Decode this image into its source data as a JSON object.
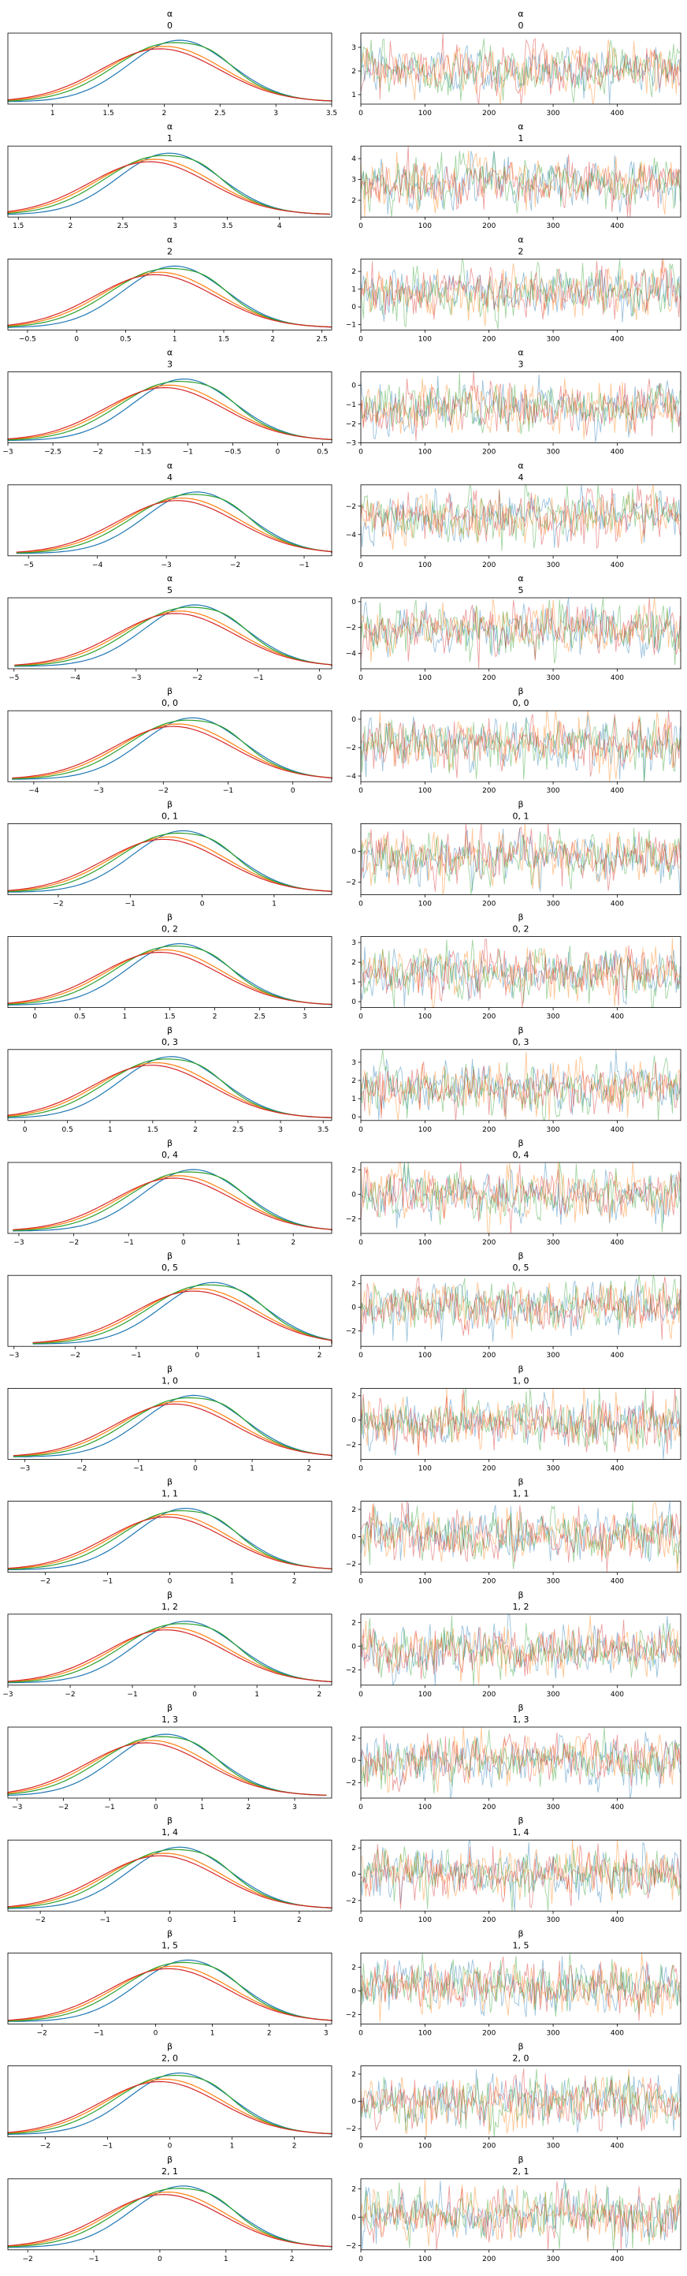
{
  "chart_data": {
    "type": "line",
    "trace_x": {
      "range": [
        0,
        499
      ],
      "ticks": [
        0,
        100,
        200,
        300,
        400
      ]
    },
    "chain_colors": [
      "#1f77b4",
      "#ff7f0e",
      "#2ca02c",
      "#d62728"
    ],
    "panels": [
      {
        "var": "α",
        "coord": "0",
        "kde_xlim": [
          0.6,
          3.5
        ],
        "kde_xticks": [
          1.0,
          1.5,
          2.0,
          2.5,
          3.0,
          3.5
        ],
        "trace_ylim": [
          0.6,
          3.6
        ],
        "trace_yticks": [
          1,
          2,
          3
        ],
        "center": 2.05
      },
      {
        "var": "α",
        "coord": "1",
        "kde_xlim": [
          1.4,
          4.5
        ],
        "kde_xticks": [
          1.5,
          2.0,
          2.5,
          3.0,
          3.5,
          4.0
        ],
        "trace_ylim": [
          1.2,
          4.6
        ],
        "trace_yticks": [
          2,
          3,
          4
        ],
        "center": 2.85
      },
      {
        "var": "α",
        "coord": "2",
        "kde_xlim": [
          -0.7,
          2.6
        ],
        "kde_xticks": [
          -0.5,
          0.0,
          0.5,
          1.0,
          1.5,
          2.0,
          2.5
        ],
        "trace_ylim": [
          -1.3,
          2.7
        ],
        "trace_yticks": [
          -1,
          0,
          1,
          2
        ],
        "center": 0.9
      },
      {
        "var": "α",
        "coord": "3",
        "kde_xlim": [
          -3.0,
          0.6
        ],
        "kde_xticks": [
          -3.0,
          -2.5,
          -2.0,
          -1.5,
          -1.0,
          -0.5,
          0.0,
          0.5
        ],
        "trace_ylim": [
          -3.0,
          0.7
        ],
        "trace_yticks": [
          -3,
          -2,
          -1,
          0
        ],
        "center": -1.15
      },
      {
        "var": "α",
        "coord": "4",
        "kde_xlim": [
          -5.3,
          -0.6
        ],
        "kde_xticks": [
          -5,
          -4,
          -3,
          -2,
          -1
        ],
        "trace_ylim": [
          -5.5,
          -0.5
        ],
        "trace_yticks": [
          -4,
          -2
        ],
        "center": -2.7
      },
      {
        "var": "α",
        "coord": "5",
        "kde_xlim": [
          -5.1,
          0.2
        ],
        "kde_xticks": [
          -5,
          -4,
          -3,
          -2,
          -1,
          0
        ],
        "trace_ylim": [
          -5.2,
          0.3
        ],
        "trace_yticks": [
          -4,
          -2,
          0
        ],
        "center": -2.2
      },
      {
        "var": "β",
        "coord": "0, 0",
        "kde_xlim": [
          -4.4,
          0.6
        ],
        "kde_xticks": [
          -4,
          -3,
          -2,
          -1,
          0
        ],
        "trace_ylim": [
          -4.4,
          0.6
        ],
        "trace_yticks": [
          -4,
          -2,
          0
        ],
        "center": -1.7
      },
      {
        "var": "β",
        "coord": "0, 1",
        "kde_xlim": [
          -2.7,
          1.8
        ],
        "kde_xticks": [
          -2,
          -1,
          0,
          1
        ],
        "trace_ylim": [
          -2.8,
          1.8
        ],
        "trace_yticks": [
          -2,
          0
        ],
        "center": -0.4
      },
      {
        "var": "β",
        "coord": "0, 2",
        "kde_xlim": [
          -0.3,
          3.3
        ],
        "kde_xticks": [
          0.0,
          0.5,
          1.0,
          1.5,
          2.0,
          2.5,
          3.0
        ],
        "trace_ylim": [
          -0.3,
          3.3
        ],
        "trace_yticks": [
          0,
          1,
          2,
          3
        ],
        "center": 1.5
      },
      {
        "var": "β",
        "coord": "0, 3",
        "kde_xlim": [
          -0.2,
          3.6
        ],
        "kde_xticks": [
          0.0,
          0.5,
          1.0,
          1.5,
          2.0,
          2.5,
          3.0,
          3.5
        ],
        "trace_ylim": [
          -0.2,
          3.7
        ],
        "trace_yticks": [
          0,
          1,
          2,
          3
        ],
        "center": 1.6
      },
      {
        "var": "β",
        "coord": "0, 4",
        "kde_xlim": [
          -3.2,
          2.7
        ],
        "kde_xticks": [
          -3,
          -2,
          -1,
          0,
          1,
          2
        ],
        "trace_ylim": [
          -3.2,
          2.6
        ],
        "trace_yticks": [
          -2,
          0,
          2
        ],
        "center": 0.0
      },
      {
        "var": "β",
        "coord": "0, 5",
        "kde_xlim": [
          -3.1,
          2.2
        ],
        "kde_xticks": [
          -3,
          -2,
          -1,
          0,
          1,
          2
        ],
        "trace_ylim": [
          -3.3,
          2.7
        ],
        "trace_yticks": [
          -2,
          0,
          2
        ],
        "center": 0.1
      },
      {
        "var": "β",
        "coord": "1, 0",
        "kde_xlim": [
          -3.3,
          2.4
        ],
        "kde_xticks": [
          -3,
          -2,
          -1,
          0,
          1,
          2
        ],
        "trace_ylim": [
          -3.2,
          2.6
        ],
        "trace_yticks": [
          -2,
          0,
          2
        ],
        "center": -0.2
      },
      {
        "var": "β",
        "coord": "1, 1",
        "kde_xlim": [
          -2.6,
          2.6
        ],
        "kde_xticks": [
          -2,
          -1,
          0,
          1,
          2
        ],
        "trace_ylim": [
          -2.6,
          2.6
        ],
        "trace_yticks": [
          -2,
          0,
          2
        ],
        "center": 0.1
      },
      {
        "var": "β",
        "coord": "1, 2",
        "kde_xlim": [
          -3.0,
          2.2
        ],
        "kde_xticks": [
          -3,
          -2,
          -1,
          0,
          1,
          2
        ],
        "trace_ylim": [
          -3.3,
          2.7
        ],
        "trace_yticks": [
          -2,
          0,
          2
        ],
        "center": -0.3
      },
      {
        "var": "β",
        "coord": "1, 3",
        "kde_xlim": [
          -3.2,
          3.8
        ],
        "kde_xticks": [
          -3,
          -2,
          -1,
          0,
          1,
          2,
          3
        ],
        "trace_ylim": [
          -3.4,
          3.0
        ],
        "trace_yticks": [
          -2,
          0,
          2
        ],
        "center": 0.0
      },
      {
        "var": "β",
        "coord": "1, 4",
        "kde_xlim": [
          -2.5,
          2.5
        ],
        "kde_xticks": [
          -2,
          -1,
          0,
          1,
          2
        ],
        "trace_ylim": [
          -2.8,
          2.6
        ],
        "trace_yticks": [
          -2,
          0,
          2
        ],
        "center": 0.0
      },
      {
        "var": "β",
        "coord": "1, 5",
        "kde_xlim": [
          -2.6,
          3.1
        ],
        "kde_xticks": [
          -2,
          -1,
          0,
          1,
          2,
          3
        ],
        "trace_ylim": [
          -2.8,
          3.2
        ],
        "trace_yticks": [
          -2,
          0,
          2
        ],
        "center": 0.4
      },
      {
        "var": "β",
        "coord": "2, 0",
        "kde_xlim": [
          -2.6,
          2.6
        ],
        "kde_xticks": [
          -2,
          -1,
          0,
          1,
          2
        ],
        "trace_ylim": [
          -2.6,
          2.6
        ],
        "trace_yticks": [
          -2,
          0,
          2
        ],
        "center": 0.0
      },
      {
        "var": "β",
        "coord": "2, 1",
        "kde_xlim": [
          -2.3,
          2.6
        ],
        "kde_xticks": [
          -2,
          -1,
          0,
          1,
          2
        ],
        "trace_ylim": [
          -2.3,
          2.7
        ],
        "trace_yticks": [
          -2,
          0,
          2
        ],
        "center": 0.2
      }
    ]
  }
}
